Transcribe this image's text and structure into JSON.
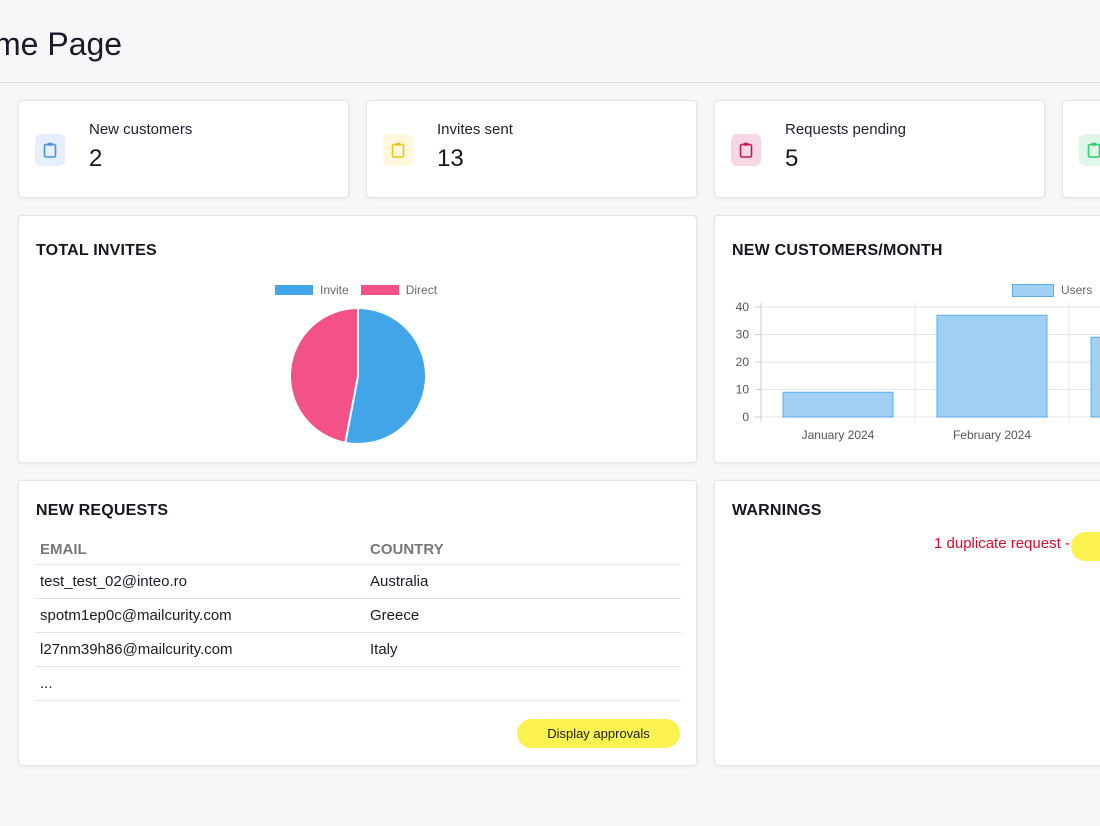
{
  "page": {
    "title": "me Page"
  },
  "stats": [
    {
      "label": "New customers",
      "value": "2",
      "icon": "clipboard-icon",
      "color": "#4a90e2",
      "bg": "#e5efff"
    },
    {
      "label": "Invites sent",
      "value": "13",
      "icon": "clipboard-icon",
      "color": "#e8c61d",
      "bg": "#fff8dc"
    },
    {
      "label": "Requests pending",
      "value": "5",
      "icon": "clipboard-icon",
      "color": "#c2185b",
      "bg": "#f8d7e4"
    },
    {
      "label": "",
      "value": "",
      "icon": "clipboard-icon",
      "color": "#2ecc71",
      "bg": "#dff7e9"
    }
  ],
  "total_invites": {
    "heading": "TOTAL INVITES"
  },
  "new_customers_month": {
    "heading": "NEW CUSTOMERS/MONTH"
  },
  "new_requests": {
    "heading": "NEW REQUESTS",
    "columns": [
      "EMAIL",
      "COUNTRY"
    ],
    "rows": [
      [
        "test_test_02@inteo.ro",
        "Australia"
      ],
      [
        "spotm1ep0c@mailcurity.com",
        "Greece"
      ],
      [
        "l27nm39h86@mailcurity.com",
        "Italy"
      ],
      [
        "...",
        ""
      ]
    ],
    "button_label": "Display approvals"
  },
  "warnings": {
    "heading": "WARNINGS",
    "message": "1 duplicate request -"
  },
  "chart_data": [
    {
      "type": "pie",
      "categories": [
        "Invite",
        "Direct"
      ],
      "values": [
        53,
        47
      ],
      "colors": [
        "#42a5e8",
        "#f25285"
      ],
      "legend": "top"
    },
    {
      "type": "bar",
      "categories": [
        "January 2024",
        "February 2024",
        ""
      ],
      "series": [
        {
          "name": "Users",
          "values": [
            9,
            37,
            29
          ]
        }
      ],
      "ylim": [
        0,
        40
      ],
      "yticks": [
        0,
        10,
        20,
        30,
        40
      ],
      "grid": true,
      "legend": "top-right",
      "fill": "#a1d0f5",
      "stroke": "#5aaef0"
    }
  ]
}
